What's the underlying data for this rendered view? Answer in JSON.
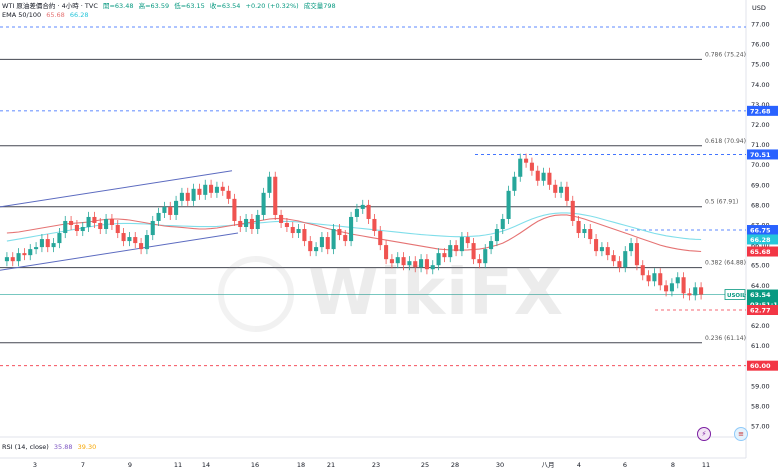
{
  "header": {
    "symbol": "WTI 原油差價合約 · 4小時 · TVC",
    "open": "開=63.48",
    "high": "高=63.59",
    "low": "低=63.15",
    "close": "收=63.54",
    "change": "+0.20 (+0.32%)",
    "volume": "成交量798",
    "ema_label": "EMA 50/100",
    "ema_values": [
      "65.68",
      "66.28"
    ],
    "rsi_label": "RSI (14, close)",
    "rsi_values": [
      "35.88",
      "39.30"
    ],
    "unit": "USD"
  },
  "colors": {
    "up": "#26a69a",
    "down": "#ef5350",
    "ema50": "#e57373",
    "ema100": "#80deea",
    "channel": "#5c6bc0",
    "fib_line": "#434651",
    "dashed_blue": "#2962ff",
    "dashed_red": "#f23645"
  },
  "chart_data": {
    "type": "candlestick",
    "ylim": [
      56.7,
      77.2
    ],
    "y_ticks": [
      "77.00",
      "76.00",
      "75.00",
      "74.00",
      "73.00",
      "72.00",
      "71.00",
      "70.00",
      "69.00",
      "68.00",
      "67.00",
      "66.00",
      "65.00",
      "64.00",
      "63.00",
      "62.00",
      "61.00",
      "60.00",
      "59.00",
      "58.00",
      "57.00"
    ],
    "x_ticks": [
      "3",
      "7",
      "9",
      "11",
      "14",
      "16",
      "18",
      "21",
      "23",
      "25",
      "28",
      "30",
      "八月",
      "4",
      "6",
      "8",
      "11"
    ],
    "fib_levels": [
      {
        "label": "0.786 (75.24)",
        "value": 75.24
      },
      {
        "label": "0.618 (70.94)",
        "value": 70.94
      },
      {
        "label": "0.5 (67.91)",
        "value": 67.91
      },
      {
        "label": "0.382 (64.88)",
        "value": 64.88
      },
      {
        "label": "0.236 (61.14)",
        "value": 61.14
      }
    ],
    "horizontal_lines": [
      {
        "value": 76.85,
        "style": "dashed",
        "color": "blue"
      },
      {
        "value": 72.68,
        "style": "dashed",
        "color": "blue"
      },
      {
        "value": 70.51,
        "style": "dashed",
        "color": "blue"
      },
      {
        "value": 66.75,
        "style": "dashed",
        "color": "blue"
      },
      {
        "value": 63.54,
        "style": "solid",
        "color": "blue"
      },
      {
        "value": 62.77,
        "style": "dashed",
        "color": "red"
      },
      {
        "value": 60.0,
        "style": "dashed",
        "color": "red"
      }
    ],
    "price_labels": [
      {
        "text": "72.68",
        "value": 72.68,
        "color": "#2962ff"
      },
      {
        "text": "70.51",
        "value": 70.51,
        "color": "#2962ff"
      },
      {
        "text": "66.75",
        "value": 66.75,
        "color": "#2962ff"
      },
      {
        "text": "66.28",
        "value": 66.28,
        "color": "#26c6da"
      },
      {
        "text": "65.68",
        "value": 65.68,
        "color": "#f23645"
      },
      {
        "text": "63.54",
        "value": 63.54,
        "color": "#089981"
      },
      {
        "text": "03:51:14",
        "value": 63.05,
        "color": "#089981"
      },
      {
        "text": "62.77",
        "value": 62.77,
        "color": "#f23645"
      },
      {
        "text": "60.00",
        "value": 60.0,
        "color": "#f23645"
      }
    ],
    "symbol_tag": "USOIL",
    "channel": {
      "upper": [
        [
          0,
          67.9
        ],
        [
          232,
          69.7
        ]
      ],
      "lower": [
        [
          0,
          64.75
        ],
        [
          238,
          66.6
        ]
      ]
    },
    "candles_close": [
      65.4,
      65.2,
      65.6,
      65.5,
      65.8,
      65.9,
      66.3,
      65.9,
      66.1,
      66.6,
      67.2,
      67.0,
      66.7,
      66.9,
      67.4,
      67.1,
      66.8,
      67.3,
      67.0,
      66.6,
      66.2,
      66.4,
      66.1,
      65.8,
      66.5,
      67.2,
      67.6,
      67.9,
      67.5,
      68.2,
      68.6,
      68.2,
      68.8,
      68.5,
      69.0,
      68.6,
      68.9,
      68.7,
      68.3,
      67.2,
      66.9,
      67.3,
      66.8,
      67.5,
      68.6,
      69.4,
      67.5,
      67.1,
      66.9,
      66.6,
      66.8,
      66.2,
      65.7,
      65.9,
      66.4,
      65.8,
      66.8,
      66.5,
      66.2,
      67.4,
      67.8,
      68.0,
      67.3,
      66.7,
      66.0,
      65.3,
      65.1,
      65.4,
      65.0,
      65.2,
      64.9,
      65.3,
      64.8,
      65.0,
      65.6,
      65.4,
      66.0,
      65.7,
      66.4,
      66.1,
      65.3,
      65.1,
      65.8,
      66.2,
      66.8,
      67.3,
      68.7,
      69.4,
      70.3,
      70.1,
      69.7,
      69.2,
      69.6,
      69.0,
      68.6,
      68.9,
      68.2,
      67.2,
      66.6,
      66.8,
      66.3,
      65.7,
      65.9,
      65.5,
      65.2,
      64.9,
      65.7,
      66.1,
      65.0,
      64.5,
      64.2,
      64.6,
      64.0,
      63.7,
      64.1,
      64.4,
      63.6,
      63.5,
      63.9,
      63.54
    ],
    "ema50": [
      66.6,
      66.62,
      66.65,
      66.7,
      66.75,
      66.8,
      66.85,
      66.9,
      66.95,
      67.0,
      67.05,
      67.08,
      67.1,
      67.12,
      67.15,
      67.2,
      67.25,
      67.28,
      67.3,
      67.3,
      67.28,
      67.25,
      67.2,
      67.15,
      67.1,
      67.05,
      67.0,
      66.95,
      66.92,
      66.9,
      66.88,
      66.85,
      66.82,
      66.8,
      66.8,
      66.82,
      66.85,
      66.9,
      66.95,
      67.0,
      67.05,
      67.1,
      67.15,
      67.2,
      67.25,
      67.3,
      67.32,
      67.33,
      67.3,
      67.25,
      67.2,
      67.12,
      67.05,
      66.98,
      66.9,
      66.82,
      66.75,
      66.68,
      66.62,
      66.55,
      66.5,
      66.45,
      66.4,
      66.35,
      66.3,
      66.25,
      66.2,
      66.15,
      66.1,
      66.05,
      66.0,
      65.95,
      65.9,
      65.85,
      65.8,
      65.78,
      65.76,
      65.75,
      65.75,
      65.76,
      65.78,
      65.8,
      65.85,
      65.92,
      66.0,
      66.1,
      66.25,
      66.42,
      66.6,
      66.8,
      67.0,
      67.18,
      67.32,
      67.42,
      67.48,
      67.5,
      67.5,
      67.45,
      67.38,
      67.3,
      67.2,
      67.1,
      67.0,
      66.9,
      66.8,
      66.7,
      66.6,
      66.5,
      66.4,
      66.3,
      66.2,
      66.1,
      66.0,
      65.92,
      65.86,
      65.8,
      65.76,
      65.72,
      65.7,
      65.68
    ],
    "ema100": [
      66.2,
      66.25,
      66.3,
      66.35,
      66.4,
      66.45,
      66.5,
      66.55,
      66.6,
      66.65,
      66.7,
      66.75,
      66.8,
      66.85,
      66.9,
      66.95,
      67.0,
      67.03,
      67.05,
      67.07,
      67.08,
      67.08,
      67.07,
      67.06,
      67.05,
      67.03,
      67.0,
      66.98,
      66.97,
      66.96,
      66.95,
      66.94,
      66.93,
      66.92,
      66.92,
      66.92,
      66.93,
      66.95,
      66.97,
      67.0,
      67.02,
      67.05,
      67.08,
      67.1,
      67.12,
      67.15,
      67.17,
      67.18,
      67.18,
      67.17,
      67.15,
      67.12,
      67.09,
      67.06,
      67.03,
      67.0,
      66.97,
      66.94,
      66.91,
      66.88,
      66.85,
      66.82,
      66.79,
      66.76,
      66.73,
      66.7,
      66.67,
      66.64,
      66.61,
      66.58,
      66.55,
      66.52,
      66.5,
      66.48,
      66.46,
      66.44,
      66.43,
      66.42,
      66.42,
      66.43,
      66.44,
      66.46,
      66.5,
      66.55,
      66.62,
      66.7,
      66.8,
      66.92,
      67.05,
      67.18,
      67.3,
      67.4,
      67.48,
      67.54,
      67.58,
      67.6,
      67.6,
      67.58,
      67.55,
      67.5,
      67.45,
      67.38,
      67.3,
      67.22,
      67.14,
      67.06,
      66.98,
      66.9,
      66.82,
      66.74,
      66.66,
      66.58,
      66.52,
      66.46,
      66.42,
      66.38,
      66.34,
      66.31,
      66.29,
      66.28
    ]
  }
}
